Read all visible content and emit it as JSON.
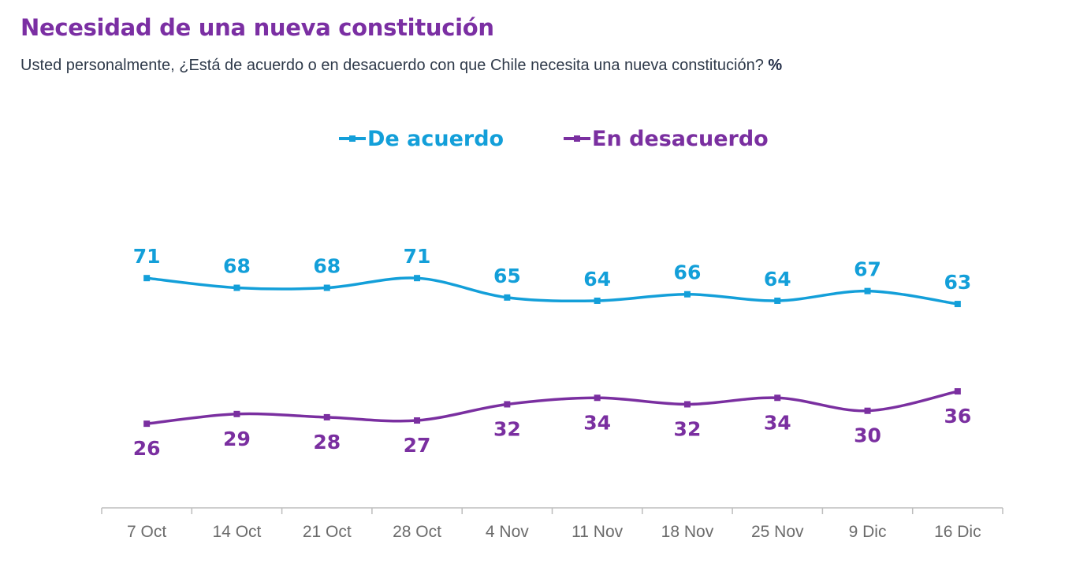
{
  "chart_data": {
    "type": "line",
    "title": "Necesidad de una nueva constitución",
    "subtitle": "Usted personalmente, ¿Está de acuerdo o en desacuerdo con que Chile necesita una nueva constitución?",
    "unit": "%",
    "categories": [
      "7 Oct",
      "14 Oct",
      "21 Oct",
      "28 Oct",
      "4 Nov",
      "11 Nov",
      "18 Nov",
      "25 Nov",
      "9 Dic",
      "16 Dic"
    ],
    "series": [
      {
        "name": "De acuerdo",
        "color": "#139fd9",
        "values": [
          71,
          68,
          68,
          71,
          65,
          64,
          66,
          64,
          67,
          63
        ]
      },
      {
        "name": "En desacuerdo",
        "color": "#7a2fa0",
        "values": [
          26,
          29,
          28,
          27,
          32,
          34,
          32,
          34,
          30,
          36
        ]
      }
    ],
    "ylim": [
      0,
      100
    ],
    "grid": false,
    "legend": "top-center",
    "xlabel": "",
    "ylabel": ""
  }
}
